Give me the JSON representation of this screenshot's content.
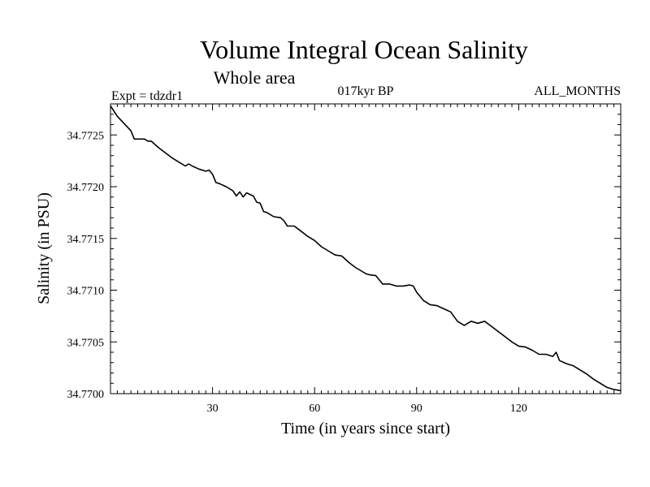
{
  "chart_data": {
    "type": "line",
    "title": "Volume Integral Ocean Salinity",
    "subtitle": "Whole area",
    "experiment": "Expt = tdzdr1",
    "period": "017kyr BP",
    "months": "ALL_MONTHS",
    "xlabel": "Time (in years since start)",
    "ylabel": "Salinity (in PSU)",
    "xlim": [
      0,
      150
    ],
    "ylim": [
      34.77,
      34.7728
    ],
    "x_ticks": [
      30,
      60,
      90,
      120
    ],
    "x_tick_labels": [
      "30",
      "60",
      "90",
      "120"
    ],
    "y_ticks": [
      34.77,
      34.7705,
      34.771,
      34.7715,
      34.772,
      34.7725
    ],
    "y_tick_labels": [
      "34.7700",
      "34.7705",
      "34.7710",
      "34.7715",
      "34.7720",
      "34.7725"
    ],
    "grid": false,
    "series": [
      {
        "name": "Salinity",
        "x": [
          0,
          2,
          4,
          6,
          7,
          8,
          10,
          11,
          12,
          14,
          16,
          18,
          20,
          22,
          23,
          24,
          26,
          28,
          29,
          30,
          31,
          32,
          34,
          36,
          37,
          38,
          39,
          40,
          42,
          43,
          44,
          45,
          46,
          48,
          50,
          51,
          52,
          54,
          56,
          58,
          60,
          62,
          64,
          66,
          68,
          70,
          72,
          74,
          75,
          76,
          78,
          80,
          82,
          84,
          86,
          88,
          89,
          90,
          92,
          94,
          96,
          98,
          100,
          102,
          104,
          106,
          108,
          110,
          112,
          114,
          116,
          118,
          120,
          122,
          124,
          126,
          128,
          130,
          131,
          132,
          134,
          136,
          138,
          139,
          140,
          142,
          144,
          146,
          148,
          150
        ],
        "values": [
          34.77278,
          34.77268,
          34.77261,
          34.77254,
          34.77246,
          34.77246,
          34.77246,
          34.77244,
          34.77244,
          34.77238,
          34.77233,
          34.77228,
          34.77224,
          34.7722,
          34.77222,
          34.7722,
          34.77217,
          34.77215,
          34.77216,
          34.77212,
          34.77204,
          34.77203,
          34.772,
          34.77196,
          34.77191,
          34.77195,
          34.7719,
          34.77194,
          34.77191,
          34.77185,
          34.77184,
          34.77176,
          34.77175,
          34.77171,
          34.7717,
          34.77167,
          34.77162,
          34.77162,
          34.77157,
          34.77152,
          34.77148,
          34.77142,
          34.77138,
          34.77134,
          34.77133,
          34.77127,
          34.77122,
          34.77118,
          34.77116,
          34.77115,
          34.77114,
          34.77106,
          34.77106,
          34.77104,
          34.77104,
          34.77105,
          34.77104,
          34.77098,
          34.7709,
          34.77086,
          34.77085,
          34.77082,
          34.77079,
          34.7707,
          34.77066,
          34.7707,
          34.77068,
          34.7707,
          34.77065,
          34.7706,
          34.77055,
          34.7705,
          34.77046,
          34.77045,
          34.77042,
          34.77038,
          34.77038,
          34.77036,
          34.7704,
          34.77032,
          34.77029,
          34.77027,
          34.77023,
          34.77021,
          34.77019,
          34.77014,
          34.7701,
          34.77006,
          34.77004,
          34.77003
        ]
      }
    ]
  }
}
